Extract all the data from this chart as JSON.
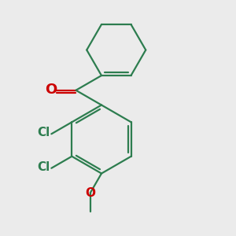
{
  "background_color": "#ebebeb",
  "bond_color": "#2d7d4f",
  "carbonyl_O_color": "#cc0000",
  "Cl_color": "#2d7d4f",
  "O_color": "#cc0000",
  "line_width": 1.6,
  "figsize": [
    3.0,
    3.0
  ],
  "dpi": 100,
  "xlim": [
    0,
    10
  ],
  "ylim": [
    0,
    10
  ]
}
